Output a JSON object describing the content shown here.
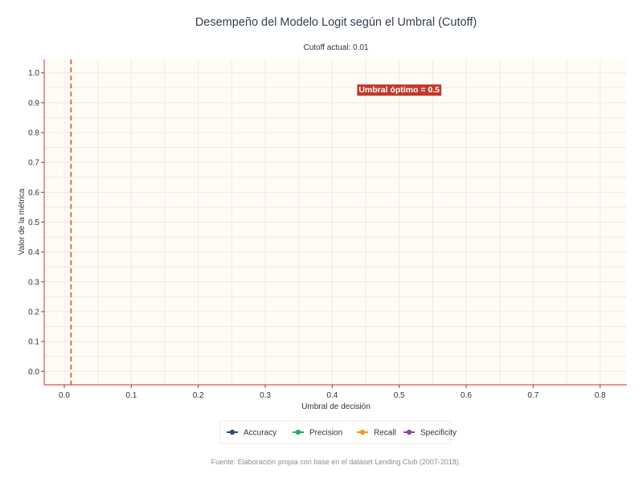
{
  "chart_data": {
    "type": "line",
    "title": "Desempeño del Modelo Logit según el Umbral (Cutoff)",
    "subtitle": "Cutoff actual: 0.01",
    "xlabel": "Umbral de decisión",
    "ylabel": "Valor de la métrica",
    "caption": "Fuente: Elaboración propia con base en el dataset Lending Club (2007-2018).",
    "xlim": [
      -0.03,
      0.84
    ],
    "ylim": [
      -0.045,
      1.045
    ],
    "x_ticks": [
      0.0,
      0.1,
      0.2,
      0.3,
      0.4,
      0.5,
      0.6,
      0.7,
      0.8
    ],
    "x_tick_labels": [
      "0.0",
      "0.1",
      "0.2",
      "0.3",
      "0.4",
      "0.5",
      "0.6",
      "0.7",
      "0.8"
    ],
    "y_ticks": [
      0.0,
      0.1,
      0.2,
      0.3,
      0.4,
      0.5,
      0.6,
      0.7,
      0.8,
      0.9,
      1.0
    ],
    "y_tick_labels": [
      "0.0",
      "0.1",
      "0.2",
      "0.3",
      "0.4",
      "0.5",
      "0.6",
      "0.7",
      "0.8",
      "0.9",
      "1.0"
    ],
    "grid": true,
    "legend_position": "bottom",
    "series": [
      {
        "name": "Accuracy",
        "color": "#2c4f74",
        "x": [],
        "y": []
      },
      {
        "name": "Precision",
        "color": "#27ae60",
        "x": [],
        "y": []
      },
      {
        "name": "Recall",
        "color": "#f39c12",
        "x": [],
        "y": []
      },
      {
        "name": "Specificity",
        "color": "#8e44ad",
        "x": [],
        "y": []
      }
    ],
    "current_cutoff": 0.01,
    "current_cutoff_color": "#e74c3c",
    "annotation": {
      "text": "Umbral óptimo = 0.5",
      "x": 0.5,
      "y": 0.945,
      "background": "#c0392b"
    },
    "colors": {
      "panel_background": "#fffcf5",
      "grid": "#fbe3e3",
      "axis_line": "#e05050",
      "legend_border": "#fbe3e3"
    }
  }
}
